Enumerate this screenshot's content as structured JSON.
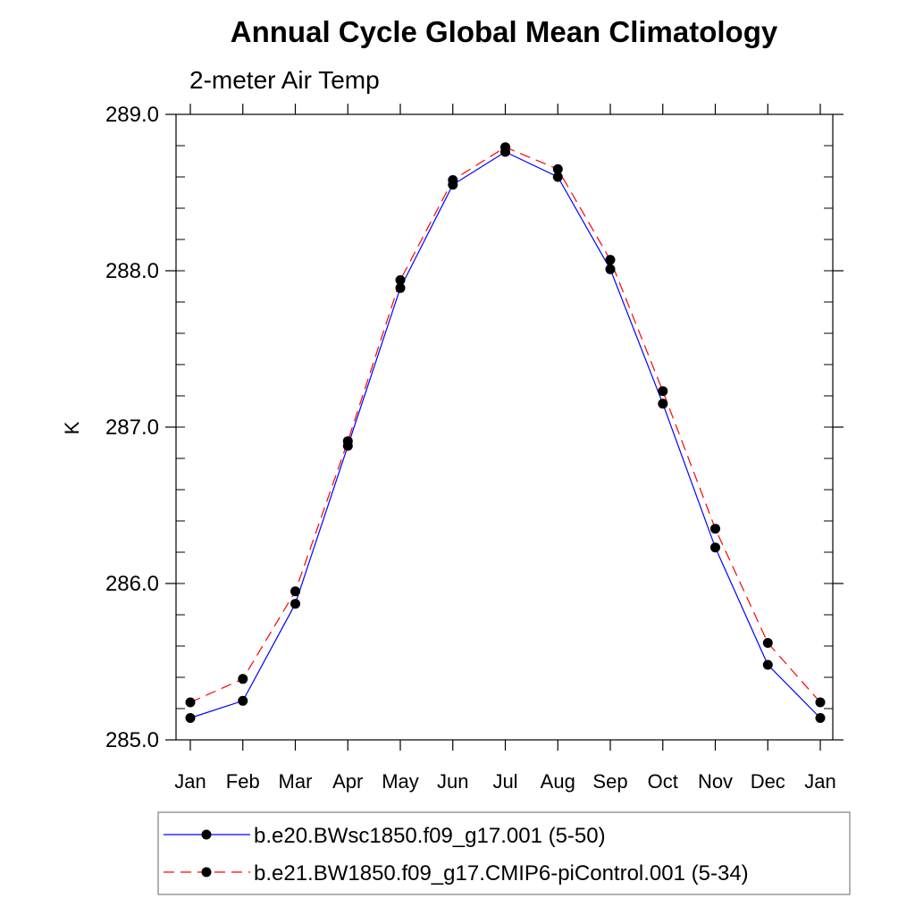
{
  "chart_data": {
    "type": "line",
    "title": "Annual Cycle Global Mean Climatology",
    "subtitle": "2-meter Air Temp",
    "ylabel": "K",
    "xlabel": "",
    "categories": [
      "Jan",
      "Feb",
      "Mar",
      "Apr",
      "May",
      "Jun",
      "Jul",
      "Aug",
      "Sep",
      "Oct",
      "Nov",
      "Dec",
      "Jan"
    ],
    "ylim": [
      285.0,
      289.0
    ],
    "yticks": [
      "285.0",
      "286.0",
      "287.0",
      "288.0",
      "289.0"
    ],
    "grid": false,
    "legend_position": "bottom",
    "series": [
      {
        "name": "b.e20.BWsc1850.f09_g17.001 (5-50)",
        "color": "#0000ff",
        "line_style": "solid",
        "marker": "filled-circle",
        "values": [
          285.14,
          285.25,
          285.87,
          286.88,
          287.89,
          288.55,
          288.76,
          288.6,
          288.01,
          287.15,
          286.23,
          285.48,
          285.14
        ]
      },
      {
        "name": "b.e21.BW1850.f09_g17.CMIP6-piControl.001 (5-34)",
        "color": "#ff0000",
        "line_style": "dashed",
        "marker": "filled-circle",
        "values": [
          285.24,
          285.39,
          285.95,
          286.91,
          287.94,
          288.58,
          288.79,
          288.65,
          288.07,
          287.23,
          286.35,
          285.62,
          285.24
        ]
      }
    ]
  }
}
